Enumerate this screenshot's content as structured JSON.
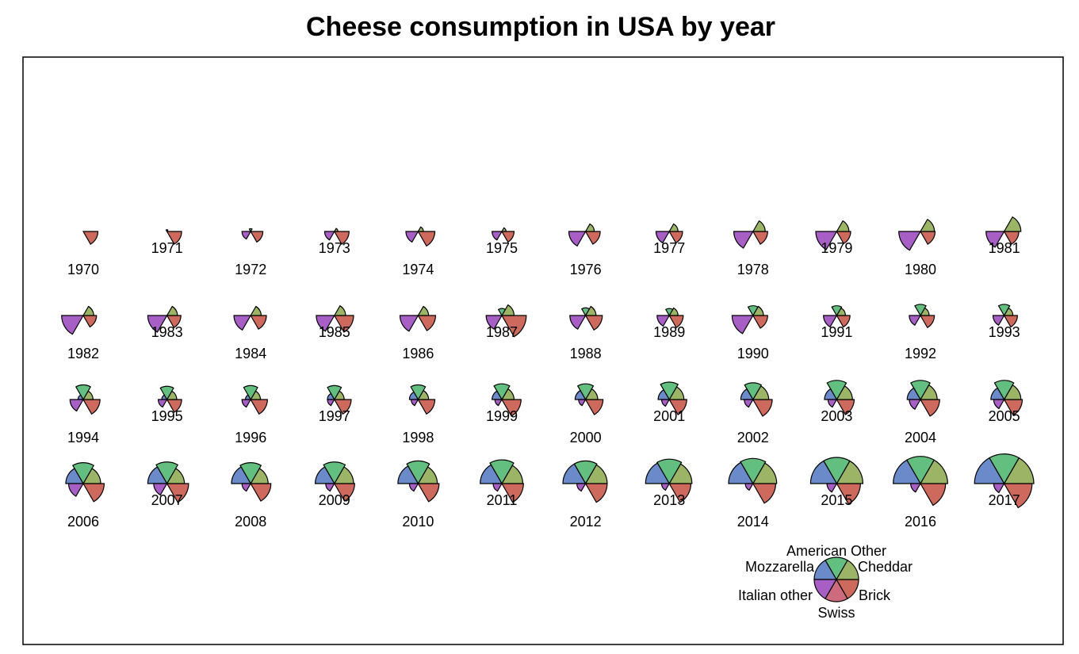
{
  "chart_data": {
    "type": "star",
    "title": "Cheese consumption in USA by year",
    "variables": [
      "Cheddar",
      "American Other",
      "Mozzarella",
      "Italian other",
      "Swiss",
      "Brick"
    ],
    "colors": {
      "Cheddar": "#cd6a5d",
      "American Other": "#9bb465",
      "Mozzarella": "#63bf7f",
      "Italian other": "#6a8ac9",
      "Swiss": "#a75fc6",
      "Brick": "#cd6a7e"
    },
    "scale_note_values": "relative radii, 0 to 1",
    "years": [
      {
        "year": "1970",
        "values": [
          0.42,
          0.0,
          0.0,
          0.0,
          0.0,
          0.0
        ]
      },
      {
        "year": "1971",
        "values": [
          0.42,
          0.0,
          0.05,
          0.0,
          0.0,
          0.0
        ]
      },
      {
        "year": "1972",
        "values": [
          0.35,
          0.0,
          0.08,
          0.0,
          0.25,
          0.0
        ]
      },
      {
        "year": "1973",
        "values": [
          0.42,
          0.1,
          0.0,
          0.0,
          0.28,
          0.0
        ]
      },
      {
        "year": "1974",
        "values": [
          0.48,
          0.15,
          0.0,
          0.0,
          0.35,
          0.0
        ]
      },
      {
        "year": "1975",
        "values": [
          0.35,
          0.12,
          0.0,
          0.0,
          0.28,
          0.0
        ]
      },
      {
        "year": "1976",
        "values": [
          0.42,
          0.25,
          0.0,
          0.0,
          0.48,
          0.0
        ]
      },
      {
        "year": "1977",
        "values": [
          0.38,
          0.25,
          0.0,
          0.0,
          0.38,
          0.0
        ]
      },
      {
        "year": "1978",
        "values": [
          0.42,
          0.35,
          0.0,
          0.0,
          0.55,
          0.0
        ]
      },
      {
        "year": "1979",
        "values": [
          0.4,
          0.35,
          0.0,
          0.0,
          0.6,
          0.0
        ]
      },
      {
        "year": "1980",
        "values": [
          0.42,
          0.4,
          0.0,
          0.0,
          0.62,
          0.0
        ]
      },
      {
        "year": "1981",
        "values": [
          0.42,
          0.48,
          0.0,
          0.0,
          0.52,
          0.0
        ]
      },
      {
        "year": "1982",
        "values": [
          0.38,
          0.3,
          0.0,
          0.0,
          0.62,
          0.0
        ]
      },
      {
        "year": "1983",
        "values": [
          0.4,
          0.3,
          0.0,
          0.0,
          0.55,
          0.0
        ]
      },
      {
        "year": "1984",
        "values": [
          0.45,
          0.3,
          0.0,
          0.0,
          0.48,
          0.0
        ]
      },
      {
        "year": "1985",
        "values": [
          0.55,
          0.32,
          0.0,
          0.0,
          0.52,
          0.0
        ]
      },
      {
        "year": "1986",
        "values": [
          0.5,
          0.3,
          0.0,
          0.0,
          0.52,
          0.0
        ]
      },
      {
        "year": "1987",
        "values": [
          0.7,
          0.35,
          0.2,
          0.0,
          0.45,
          0.0
        ]
      },
      {
        "year": "1988",
        "values": [
          0.48,
          0.3,
          0.22,
          0.0,
          0.45,
          0.0
        ]
      },
      {
        "year": "1989",
        "values": [
          0.4,
          0.25,
          0.2,
          0.0,
          0.35,
          0.0
        ]
      },
      {
        "year": "1990",
        "values": [
          0.42,
          0.3,
          0.28,
          0.0,
          0.6,
          0.0
        ]
      },
      {
        "year": "1991",
        "values": [
          0.38,
          0.25,
          0.28,
          0.0,
          0.38,
          0.0
        ]
      },
      {
        "year": "1992",
        "values": [
          0.4,
          0.25,
          0.32,
          0.0,
          0.32,
          0.0
        ]
      },
      {
        "year": "1993",
        "values": [
          0.38,
          0.25,
          0.32,
          0.0,
          0.32,
          0.0
        ]
      },
      {
        "year": "1994",
        "values": [
          0.48,
          0.28,
          0.42,
          0.15,
          0.38,
          0.0
        ]
      },
      {
        "year": "1995",
        "values": [
          0.42,
          0.28,
          0.38,
          0.15,
          0.25,
          0.0
        ]
      },
      {
        "year": "1996",
        "values": [
          0.48,
          0.28,
          0.4,
          0.15,
          0.25,
          0.0
        ]
      },
      {
        "year": "1997",
        "values": [
          0.48,
          0.28,
          0.4,
          0.2,
          0.2,
          0.0
        ]
      },
      {
        "year": "1998",
        "values": [
          0.48,
          0.3,
          0.42,
          0.25,
          0.2,
          0.0
        ]
      },
      {
        "year": "1999",
        "values": [
          0.55,
          0.35,
          0.45,
          0.28,
          0.2,
          0.0
        ]
      },
      {
        "year": "2000",
        "values": [
          0.5,
          0.35,
          0.45,
          0.3,
          0.2,
          0.0
        ]
      },
      {
        "year": "2001",
        "values": [
          0.5,
          0.42,
          0.5,
          0.32,
          0.22,
          0.0
        ]
      },
      {
        "year": "2002",
        "values": [
          0.55,
          0.45,
          0.48,
          0.35,
          0.25,
          0.0
        ]
      },
      {
        "year": "2003",
        "values": [
          0.5,
          0.45,
          0.55,
          0.35,
          0.25,
          0.0
        ]
      },
      {
        "year": "2004",
        "values": [
          0.55,
          0.48,
          0.55,
          0.38,
          0.32,
          0.0
        ]
      },
      {
        "year": "2005",
        "values": [
          0.52,
          0.48,
          0.55,
          0.38,
          0.3,
          0.0
        ]
      },
      {
        "year": "2006",
        "values": [
          0.6,
          0.5,
          0.6,
          0.5,
          0.42,
          0.0
        ]
      },
      {
        "year": "2007",
        "values": [
          0.62,
          0.5,
          0.62,
          0.55,
          0.38,
          0.0
        ]
      },
      {
        "year": "2008",
        "values": [
          0.58,
          0.5,
          0.6,
          0.55,
          0.25,
          0.0
        ]
      },
      {
        "year": "2009",
        "values": [
          0.58,
          0.55,
          0.62,
          0.55,
          0.25,
          0.0
        ]
      },
      {
        "year": "2010",
        "values": [
          0.6,
          0.55,
          0.65,
          0.58,
          0.25,
          0.0
        ]
      },
      {
        "year": "2011",
        "values": [
          0.62,
          0.6,
          0.68,
          0.62,
          0.25,
          0.0
        ]
      },
      {
        "year": "2012",
        "values": [
          0.62,
          0.62,
          0.65,
          0.65,
          0.25,
          0.0
        ]
      },
      {
        "year": "2013",
        "values": [
          0.62,
          0.65,
          0.7,
          0.68,
          0.22,
          0.0
        ]
      },
      {
        "year": "2014",
        "values": [
          0.65,
          0.68,
          0.72,
          0.7,
          0.22,
          0.0
        ]
      },
      {
        "year": "2015",
        "values": [
          0.68,
          0.75,
          0.75,
          0.75,
          0.28,
          0.0
        ]
      },
      {
        "year": "2016",
        "values": [
          0.72,
          0.78,
          0.78,
          0.78,
          0.28,
          0.0
        ]
      },
      {
        "year": "2017",
        "values": [
          0.8,
          0.85,
          0.85,
          0.85,
          0.3,
          0.0
        ]
      }
    ],
    "key": {
      "labels": [
        "Cheddar",
        "American Other",
        "Mozzarella",
        "Italian other",
        "Swiss",
        "Brick"
      ]
    }
  }
}
